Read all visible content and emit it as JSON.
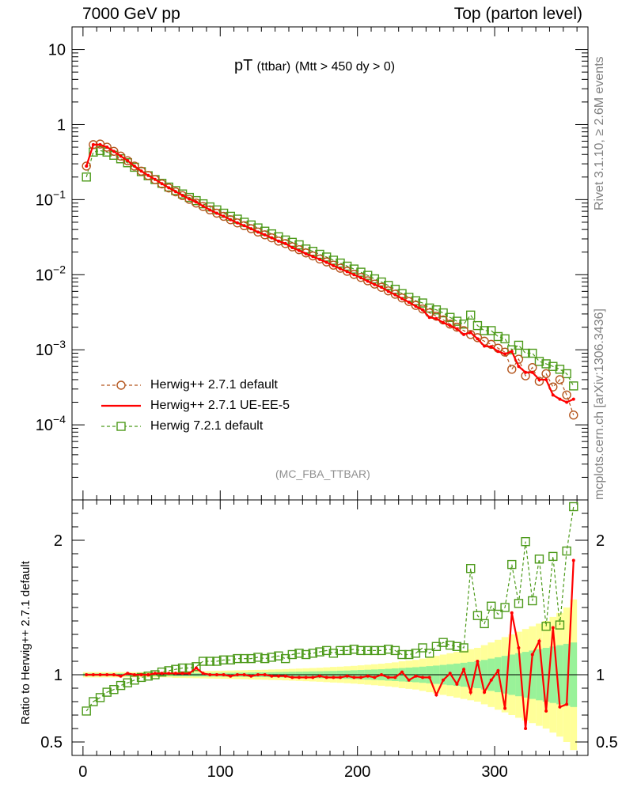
{
  "header": {
    "left": "7000 GeV pp",
    "right": "Top (parton level)"
  },
  "side_labels": {
    "rivet": "Rivet 3.1.10, ≥ 2.6M events",
    "mcplots": "mcplots.cern.ch [arXiv:1306.3436]"
  },
  "plot_title": {
    "main": "pT",
    "qualifier": "(ttbar)",
    "cut": "(Mtt > 450 dy > 0)"
  },
  "watermark": "(MC_FBA_TTBAR)",
  "legend": [
    {
      "label": "Herwig++ 2.7.1 default",
      "color": "#b4561e",
      "marker": "circle",
      "style": "dashed"
    },
    {
      "label": "Herwig++ 2.7.1 UE-EE-5",
      "color": "#ff0000",
      "marker": "none",
      "style": "solid"
    },
    {
      "label": "Herwig 7.2.1 default",
      "color": "#4c9a1a",
      "marker": "square",
      "style": "dashed"
    }
  ],
  "ratio_ylabel": "Ratio to Herwig++ 2.7.1 default",
  "colors": {
    "band_inner": "#99f299",
    "band_outer": "#ffff99"
  },
  "chart_data": [
    {
      "type": "line",
      "title": "pT (ttbar) (Mtt > 450 dy > 0)",
      "yscale": "log",
      "xlim": [
        -8,
        368
      ],
      "ylim": [
        1e-05,
        20
      ],
      "y_ticks": [
        "10^-4",
        "10^-3",
        "10^-2",
        "10^-1",
        "1",
        "10"
      ],
      "x_ticks": [
        0,
        100,
        200,
        300
      ],
      "x": [
        2.5,
        7.5,
        12.5,
        17.5,
        22.5,
        27.5,
        32.5,
        37.5,
        42.5,
        47.5,
        52.5,
        57.5,
        62.5,
        67.5,
        72.5,
        77.5,
        82.5,
        87.5,
        92.5,
        97.5,
        102.5,
        107.5,
        112.5,
        117.5,
        122.5,
        127.5,
        132.5,
        137.5,
        142.5,
        147.5,
        152.5,
        157.5,
        162.5,
        167.5,
        172.5,
        177.5,
        182.5,
        187.5,
        192.5,
        197.5,
        202.5,
        207.5,
        212.5,
        217.5,
        222.5,
        227.5,
        232.5,
        237.5,
        242.5,
        247.5,
        252.5,
        257.5,
        262.5,
        267.5,
        272.5,
        277.5,
        282.5,
        287.5,
        292.5,
        297.5,
        302.5,
        307.5,
        312.5,
        317.5,
        322.5,
        327.5,
        332.5,
        337.5,
        342.5,
        347.5,
        352.5,
        357.5
      ],
      "series": [
        {
          "name": "Herwig++ 2.7.1 default",
          "values": [
            0.28,
            0.54,
            0.55,
            0.5,
            0.44,
            0.38,
            0.33,
            0.28,
            0.24,
            0.21,
            0.185,
            0.162,
            0.143,
            0.127,
            0.113,
            0.101,
            0.09,
            0.081,
            0.073,
            0.066,
            0.06,
            0.054,
            0.049,
            0.045,
            0.041,
            0.037,
            0.034,
            0.031,
            0.028,
            0.026,
            0.0235,
            0.0215,
            0.0195,
            0.0178,
            0.0162,
            0.0148,
            0.0134,
            0.0122,
            0.0111,
            0.0101,
            0.0092,
            0.0083,
            0.0075,
            0.0068,
            0.0061,
            0.0055,
            0.0049,
            0.0044,
            0.0039,
            0.0035,
            0.0031,
            0.0028,
            0.0025,
            0.0022,
            0.002,
            0.0018,
            0.0016,
            0.00145,
            0.0013,
            0.00118,
            0.00105,
            0.00093,
            0.00055,
            0.00075,
            0.00045,
            0.00058,
            0.00038,
            0.00048,
            0.00032,
            0.0004,
            0.00025,
            0.000135
          ]
        },
        {
          "name": "Herwig++ 2.7.1 UE-EE-5",
          "values": [
            0.28,
            0.54,
            0.54,
            0.5,
            0.44,
            0.38,
            0.33,
            0.28,
            0.24,
            0.21,
            0.186,
            0.163,
            0.144,
            0.128,
            0.114,
            0.102,
            0.093,
            0.082,
            0.073,
            0.066,
            0.06,
            0.054,
            0.049,
            0.045,
            0.041,
            0.037,
            0.034,
            0.031,
            0.028,
            0.026,
            0.023,
            0.021,
            0.019,
            0.0175,
            0.016,
            0.0146,
            0.0132,
            0.012,
            0.011,
            0.01,
            0.0091,
            0.0082,
            0.0074,
            0.0068,
            0.006,
            0.0054,
            0.0048,
            0.0043,
            0.0038,
            0.0034,
            0.0027,
            0.0026,
            0.0023,
            0.0021,
            0.0019,
            0.0016,
            0.0017,
            0.0014,
            0.00112,
            0.0011,
            0.00095,
            0.00088,
            0.00095,
            0.0006,
            0.0005,
            0.0005,
            0.0004,
            0.0004,
            0.00025,
            0.00022,
            0.0002,
            0.00022
          ]
        },
        {
          "name": "Herwig 7.2.1 default",
          "values": [
            0.2,
            0.43,
            0.45,
            0.43,
            0.39,
            0.35,
            0.31,
            0.27,
            0.236,
            0.208,
            0.185,
            0.165,
            0.147,
            0.132,
            0.119,
            0.107,
            0.097,
            0.088,
            0.08,
            0.073,
            0.066,
            0.06,
            0.055,
            0.05,
            0.046,
            0.042,
            0.038,
            0.035,
            0.032,
            0.029,
            0.027,
            0.025,
            0.022,
            0.0205,
            0.0187,
            0.0172,
            0.0156,
            0.0143,
            0.013,
            0.0119,
            0.0108,
            0.0098,
            0.0088,
            0.008,
            0.0072,
            0.0064,
            0.0056,
            0.005,
            0.0045,
            0.0042,
            0.0036,
            0.0034,
            0.0031,
            0.0027,
            0.0024,
            0.0022,
            0.0029,
            0.0021,
            0.0018,
            0.0018,
            0.0015,
            0.0014,
            0.001,
            0.00115,
            0.0009,
            0.0009,
            0.0007,
            0.00065,
            0.0006,
            0.00055,
            0.00048,
            0.00033
          ]
        }
      ]
    },
    {
      "type": "line",
      "ylabel": "Ratio to Herwig++ 2.7.1 default",
      "xlim": [
        -8,
        368
      ],
      "ylim": [
        0.4,
        2.3
      ],
      "y_ticks": [
        0.5,
        1,
        2
      ],
      "x_ticks": [
        0,
        100,
        200,
        300
      ],
      "x": [
        2.5,
        7.5,
        12.5,
        17.5,
        22.5,
        27.5,
        32.5,
        37.5,
        42.5,
        47.5,
        52.5,
        57.5,
        62.5,
        67.5,
        72.5,
        77.5,
        82.5,
        87.5,
        92.5,
        97.5,
        102.5,
        107.5,
        112.5,
        117.5,
        122.5,
        127.5,
        132.5,
        137.5,
        142.5,
        147.5,
        152.5,
        157.5,
        162.5,
        167.5,
        172.5,
        177.5,
        182.5,
        187.5,
        192.5,
        197.5,
        202.5,
        207.5,
        212.5,
        217.5,
        222.5,
        227.5,
        232.5,
        237.5,
        242.5,
        247.5,
        252.5,
        257.5,
        262.5,
        267.5,
        272.5,
        277.5,
        282.5,
        287.5,
        292.5,
        297.5,
        302.5,
        307.5,
        312.5,
        317.5,
        322.5,
        327.5,
        332.5,
        337.5,
        342.5,
        347.5,
        352.5,
        357.5
      ],
      "band": {
        "inner": [
          0.01,
          0.01,
          0.01,
          0.01,
          0.01,
          0.01,
          0.01,
          0.01,
          0.01,
          0.01,
          0.01,
          0.01,
          0.01,
          0.012,
          0.012,
          0.012,
          0.013,
          0.013,
          0.014,
          0.014,
          0.015,
          0.015,
          0.016,
          0.016,
          0.017,
          0.018,
          0.018,
          0.019,
          0.02,
          0.021,
          0.022,
          0.023,
          0.024,
          0.025,
          0.026,
          0.027,
          0.028,
          0.03,
          0.031,
          0.033,
          0.035,
          0.037,
          0.039,
          0.041,
          0.044,
          0.047,
          0.05,
          0.053,
          0.056,
          0.06,
          0.064,
          0.068,
          0.073,
          0.078,
          0.083,
          0.089,
          0.095,
          0.1,
          0.11,
          0.12,
          0.13,
          0.14,
          0.15,
          0.16,
          0.17,
          0.18,
          0.19,
          0.2,
          0.21,
          0.22,
          0.23,
          0.24
        ],
        "outer": [
          0.02,
          0.02,
          0.02,
          0.02,
          0.02,
          0.02,
          0.02,
          0.02,
          0.02,
          0.02,
          0.02,
          0.02,
          0.02,
          0.024,
          0.024,
          0.025,
          0.026,
          0.027,
          0.028,
          0.029,
          0.03,
          0.031,
          0.032,
          0.033,
          0.035,
          0.036,
          0.037,
          0.039,
          0.04,
          0.042,
          0.044,
          0.046,
          0.048,
          0.05,
          0.052,
          0.055,
          0.058,
          0.06,
          0.063,
          0.066,
          0.07,
          0.074,
          0.078,
          0.082,
          0.087,
          0.092,
          0.1,
          0.105,
          0.11,
          0.12,
          0.13,
          0.14,
          0.15,
          0.16,
          0.17,
          0.18,
          0.19,
          0.2,
          0.22,
          0.24,
          0.26,
          0.28,
          0.3,
          0.32,
          0.34,
          0.36,
          0.38,
          0.4,
          0.43,
          0.46,
          0.5,
          0.56
        ]
      },
      "series": [
        {
          "name": "Herwig++ 2.7.1 UE-EE-5",
          "values": [
            1.0,
            1.0,
            1.0,
            1.0,
            1.0,
            0.99,
            1.01,
            1.0,
            1.0,
            1.0,
            1.01,
            1.01,
            1.01,
            1.01,
            1.01,
            1.01,
            1.05,
            1.01,
            1.0,
            1.0,
            1.0,
            0.99,
            1.0,
            1.0,
            0.99,
            1.0,
            1.0,
            0.99,
            0.99,
            0.99,
            0.98,
            0.98,
            0.98,
            0.98,
            0.99,
            0.98,
            0.98,
            0.98,
            0.99,
            0.98,
            0.98,
            0.99,
            0.98,
            1.0,
            0.98,
            0.98,
            1.02,
            0.96,
            0.99,
            0.98,
            0.98,
            0.85,
            0.96,
            1.01,
            0.93,
            1.04,
            0.87,
            1.1,
            0.87,
            0.96,
            1.03,
            0.75,
            1.46,
            1.2,
            0.6,
            1.15,
            1.25,
            0.73,
            1.35,
            0.76,
            0.78,
            1.85
          ]
        },
        {
          "name": "Herwig 7.2.1 default",
          "values": [
            0.73,
            0.8,
            0.83,
            0.87,
            0.89,
            0.92,
            0.94,
            0.96,
            0.98,
            0.99,
            1.0,
            1.02,
            1.03,
            1.04,
            1.05,
            1.05,
            1.06,
            1.1,
            1.1,
            1.1,
            1.11,
            1.11,
            1.12,
            1.12,
            1.12,
            1.13,
            1.12,
            1.13,
            1.14,
            1.12,
            1.15,
            1.16,
            1.15,
            1.16,
            1.17,
            1.18,
            1.16,
            1.18,
            1.18,
            1.19,
            1.18,
            1.18,
            1.18,
            1.18,
            1.19,
            1.18,
            1.15,
            1.15,
            1.16,
            1.2,
            1.16,
            1.21,
            1.24,
            1.22,
            1.21,
            1.2,
            1.79,
            1.44,
            1.38,
            1.51,
            1.45,
            1.5,
            1.82,
            1.53,
            1.99,
            1.55,
            1.86,
            1.36,
            1.88,
            1.37,
            1.92,
            2.25
          ]
        }
      ]
    }
  ]
}
